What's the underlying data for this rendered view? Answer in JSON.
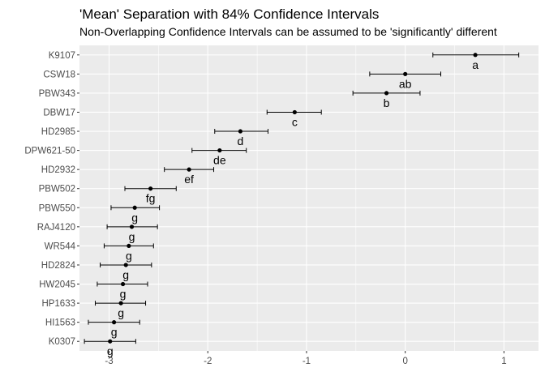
{
  "chart_data": {
    "type": "scatter",
    "title": "'Mean' Separation with 84% Confidence Intervals",
    "subtitle": "Non-Overlapping Confidence Intervals can be assumed to be 'significantly' different",
    "xlabel": "",
    "ylabel": "",
    "xlim": [
      -3.3,
      1.35
    ],
    "xticks": [
      -3,
      -2,
      -1,
      0,
      1
    ],
    "grid": true,
    "background": "#ebebeb",
    "gridColor": "#ffffff",
    "categories": [
      "K9107",
      "CSW18",
      "PBW343",
      "DBW17",
      "HD2985",
      "DPW621-50",
      "HD2932",
      "PBW502",
      "PBW550",
      "RAJ4120",
      "WR544",
      "HD2824",
      "HW2045",
      "HP1633",
      "HI1563",
      "K0307"
    ],
    "points": [
      {
        "name": "K9107",
        "mean": 0.71,
        "lower": 0.28,
        "upper": 1.15,
        "group": "a"
      },
      {
        "name": "CSW18",
        "mean": 0.0,
        "lower": -0.36,
        "upper": 0.36,
        "group": "ab"
      },
      {
        "name": "PBW343",
        "mean": -0.19,
        "lower": -0.53,
        "upper": 0.15,
        "group": "b"
      },
      {
        "name": "DBW17",
        "mean": -1.12,
        "lower": -1.4,
        "upper": -0.85,
        "group": "c"
      },
      {
        "name": "HD2985",
        "mean": -1.67,
        "lower": -1.93,
        "upper": -1.39,
        "group": "d"
      },
      {
        "name": "DPW621-50",
        "mean": -1.88,
        "lower": -2.16,
        "upper": -1.61,
        "group": "de"
      },
      {
        "name": "HD2932",
        "mean": -2.19,
        "lower": -2.44,
        "upper": -1.94,
        "group": "ef"
      },
      {
        "name": "PBW502",
        "mean": -2.58,
        "lower": -2.84,
        "upper": -2.32,
        "group": "fg"
      },
      {
        "name": "PBW550",
        "mean": -2.74,
        "lower": -2.98,
        "upper": -2.49,
        "group": "g"
      },
      {
        "name": "RAJ4120",
        "mean": -2.77,
        "lower": -3.02,
        "upper": -2.51,
        "group": "g"
      },
      {
        "name": "WR544",
        "mean": -2.8,
        "lower": -3.05,
        "upper": -2.55,
        "group": "g"
      },
      {
        "name": "HD2824",
        "mean": -2.83,
        "lower": -3.09,
        "upper": -2.57,
        "group": "g"
      },
      {
        "name": "HW2045",
        "mean": -2.86,
        "lower": -3.12,
        "upper": -2.61,
        "group": "g"
      },
      {
        "name": "HP1633",
        "mean": -2.88,
        "lower": -3.14,
        "upper": -2.63,
        "group": "g"
      },
      {
        "name": "HI1563",
        "mean": -2.95,
        "lower": -3.21,
        "upper": -2.69,
        "group": "g"
      },
      {
        "name": "K0307",
        "mean": -2.99,
        "lower": -3.25,
        "upper": -2.73,
        "group": "g"
      }
    ]
  }
}
